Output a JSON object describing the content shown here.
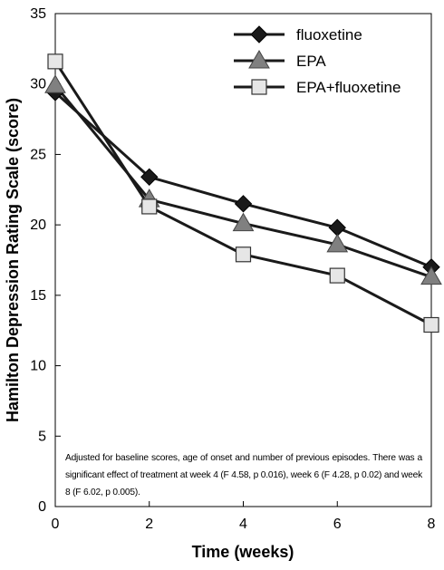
{
  "chart_data": {
    "type": "line",
    "xlabel": "Time (weeks)",
    "ylabel": "Hamilton Depression Rating Scale (score)",
    "xlim": [
      0,
      8
    ],
    "ylim": [
      0,
      35
    ],
    "x_ticks": [
      "0",
      "2",
      "4",
      "6",
      "8"
    ],
    "y_ticks": [
      "0",
      "5",
      "10",
      "15",
      "20",
      "25",
      "30",
      "35"
    ],
    "x": [
      0,
      2,
      4,
      6,
      8
    ],
    "series": [
      {
        "name": "fluoxetine",
        "values": [
          29.4,
          23.4,
          21.5,
          19.8,
          17.0
        ],
        "marker": "diamond",
        "fill": "#1a1a1a"
      },
      {
        "name": "EPA",
        "values": [
          29.9,
          21.8,
          20.1,
          18.6,
          16.3
        ],
        "marker": "triangle",
        "fill": "#808080"
      },
      {
        "name": "EPA+fluoxetine",
        "values": [
          31.6,
          21.3,
          17.9,
          16.4,
          12.9
        ],
        "marker": "square",
        "fill": "#e6e6e6"
      }
    ],
    "legend_position": "top-right",
    "grid": false,
    "annotation": "Adjusted for baseline scores, age of onset and number of previous episodes. There was a significant effect of treatment at week 4 (F 4.58, p 0.016), week 6 (F 4.28, p 0.02) and week 8 (F 6.02, p 0.005)."
  }
}
